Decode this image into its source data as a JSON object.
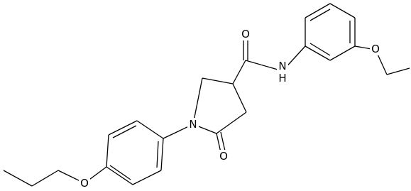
{
  "atoms": [
    "O",
    "N",
    "H",
    "O",
    "N",
    "O",
    "O"
  ]
}
